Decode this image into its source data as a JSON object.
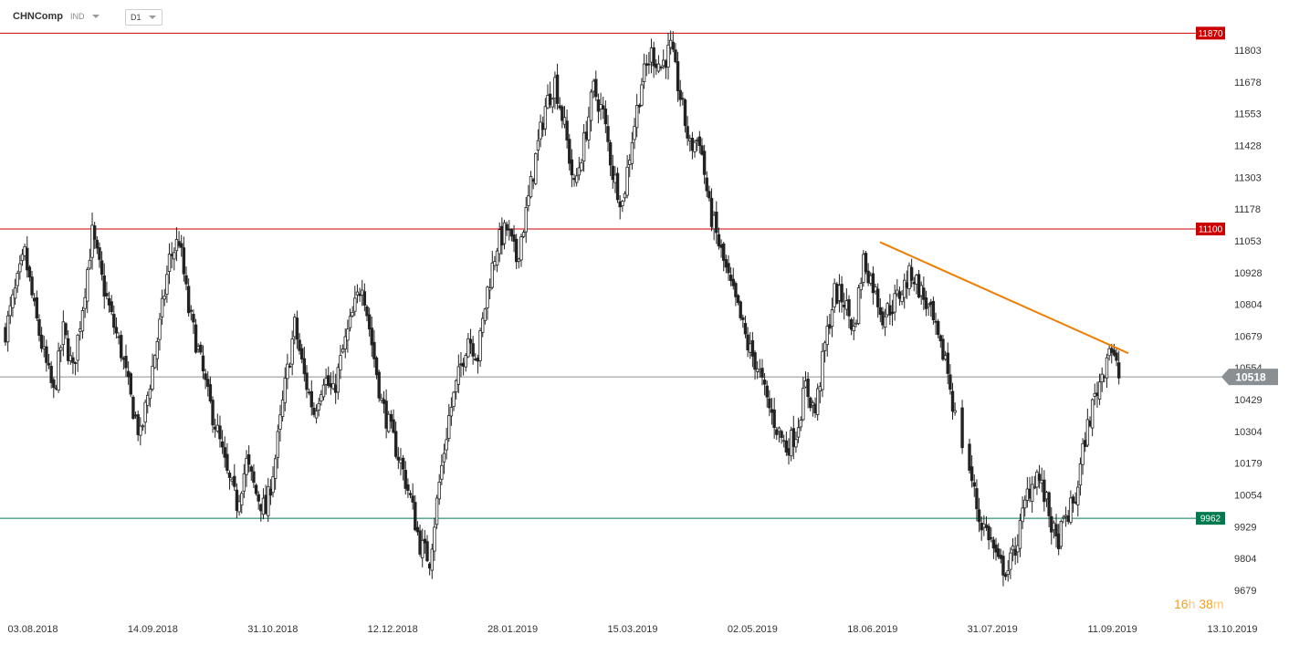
{
  "toolbar": {
    "symbol": "CHNComp",
    "type": "IND",
    "timeframe": "D1"
  },
  "timer": {
    "h": "16",
    "h_unit": "h",
    "m": "38",
    "m_unit": "m"
  },
  "chart_data": {
    "type": "candlestick",
    "title": "",
    "xlabel": "",
    "ylabel": "",
    "y_ticks": [
      11803,
      11678,
      11553,
      11428,
      11303,
      11178,
      11053,
      10928,
      10804,
      10679,
      10554,
      10429,
      10304,
      10179,
      10054,
      9929,
      9804,
      9679
    ],
    "ylim": [
      9650,
      11880
    ],
    "x_ticks": [
      "03.08.2018",
      "14.09.2018",
      "31.10.2018",
      "12.12.2018",
      "28.01.2019",
      "15.03.2019",
      "02.05.2019",
      "18.06.2019",
      "31.07.2019",
      "11.09.2019",
      "13.10.2019"
    ],
    "levels": [
      {
        "value": 11870,
        "label": "11870",
        "color": "#cc0000"
      },
      {
        "value": 11100,
        "label": "11100",
        "color": "#cc0000"
      },
      {
        "value": 9962,
        "label": "9962",
        "color": "#007a4d"
      }
    ],
    "current_price": {
      "value": 10518,
      "label": "10518",
      "color": "#8a8f94"
    },
    "trendline": {
      "color": "#f07c00",
      "from": {
        "date": "2019-06-18",
        "value": 11048
      },
      "to": {
        "date": "2019-09-18",
        "value": 10611
      }
    },
    "grid": false,
    "close_path": [
      [
        0,
        10700
      ],
      [
        4,
        10850
      ],
      [
        8,
        11000
      ],
      [
        12,
        10780
      ],
      [
        16,
        10600
      ],
      [
        20,
        10450
      ],
      [
        24,
        10700
      ],
      [
        28,
        10540
      ],
      [
        32,
        10800
      ],
      [
        36,
        11080
      ],
      [
        40,
        10900
      ],
      [
        44,
        10750
      ],
      [
        48,
        10620
      ],
      [
        52,
        10430
      ],
      [
        56,
        10280
      ],
      [
        60,
        10500
      ],
      [
        64,
        10720
      ],
      [
        68,
        10980
      ],
      [
        72,
        11060
      ],
      [
        76,
        10780
      ],
      [
        80,
        10620
      ],
      [
        84,
        10440
      ],
      [
        88,
        10300
      ],
      [
        92,
        10130
      ],
      [
        96,
        10020
      ],
      [
        100,
        10180
      ],
      [
        104,
        10060
      ],
      [
        108,
        9990
      ],
      [
        112,
        10200
      ],
      [
        116,
        10480
      ],
      [
        120,
        10720
      ],
      [
        124,
        10520
      ],
      [
        128,
        10380
      ],
      [
        132,
        10520
      ],
      [
        136,
        10450
      ],
      [
        140,
        10620
      ],
      [
        144,
        10760
      ],
      [
        148,
        10900
      ],
      [
        152,
        10650
      ],
      [
        156,
        10420
      ],
      [
        160,
        10300
      ],
      [
        164,
        10180
      ],
      [
        168,
        10040
      ],
      [
        172,
        9860
      ],
      [
        176,
        9800
      ],
      [
        180,
        10100
      ],
      [
        184,
        10360
      ],
      [
        188,
        10520
      ],
      [
        192,
        10680
      ],
      [
        196,
        10600
      ],
      [
        200,
        10860
      ],
      [
        204,
        11040
      ],
      [
        208,
        11100
      ],
      [
        212,
        10980
      ],
      [
        216,
        11160
      ],
      [
        220,
        11380
      ],
      [
        224,
        11580
      ],
      [
        228,
        11680
      ],
      [
        232,
        11500
      ],
      [
        236,
        11260
      ],
      [
        240,
        11440
      ],
      [
        244,
        11650
      ],
      [
        248,
        11550
      ],
      [
        252,
        11320
      ],
      [
        256,
        11200
      ],
      [
        260,
        11460
      ],
      [
        264,
        11680
      ],
      [
        268,
        11790
      ],
      [
        272,
        11740
      ],
      [
        276,
        11810
      ],
      [
        280,
        11620
      ],
      [
        284,
        11420
      ],
      [
        288,
        11460
      ],
      [
        292,
        11180
      ],
      [
        296,
        11040
      ],
      [
        300,
        10900
      ],
      [
        304,
        10780
      ],
      [
        308,
        10640
      ],
      [
        312,
        10560
      ],
      [
        316,
        10420
      ],
      [
        320,
        10320
      ],
      [
        324,
        10240
      ],
      [
        328,
        10300
      ],
      [
        332,
        10480
      ],
      [
        336,
        10380
      ],
      [
        340,
        10640
      ],
      [
        344,
        10850
      ],
      [
        348,
        10820
      ],
      [
        352,
        10700
      ],
      [
        356,
        10980
      ],
      [
        360,
        10880
      ],
      [
        364,
        10760
      ],
      [
        368,
        10800
      ],
      [
        372,
        10860
      ],
      [
        376,
        10930
      ],
      [
        380,
        10850
      ],
      [
        384,
        10760
      ],
      [
        388,
        10620
      ],
      [
        390,
        10600
      ],
      [
        394,
        10360
      ],
      [
        400,
        10160
      ],
      [
        404,
        9960
      ],
      [
        408,
        9900
      ],
      [
        412,
        9780
      ],
      [
        416,
        9760
      ],
      [
        420,
        9880
      ],
      [
        424,
        10060
      ],
      [
        428,
        10140
      ],
      [
        432,
        10020
      ],
      [
        436,
        9860
      ],
      [
        440,
        9960
      ],
      [
        444,
        10040
      ],
      [
        448,
        10280
      ],
      [
        452,
        10440
      ],
      [
        456,
        10560
      ],
      [
        458,
        10650
      ],
      [
        462,
        10520
      ]
    ]
  }
}
